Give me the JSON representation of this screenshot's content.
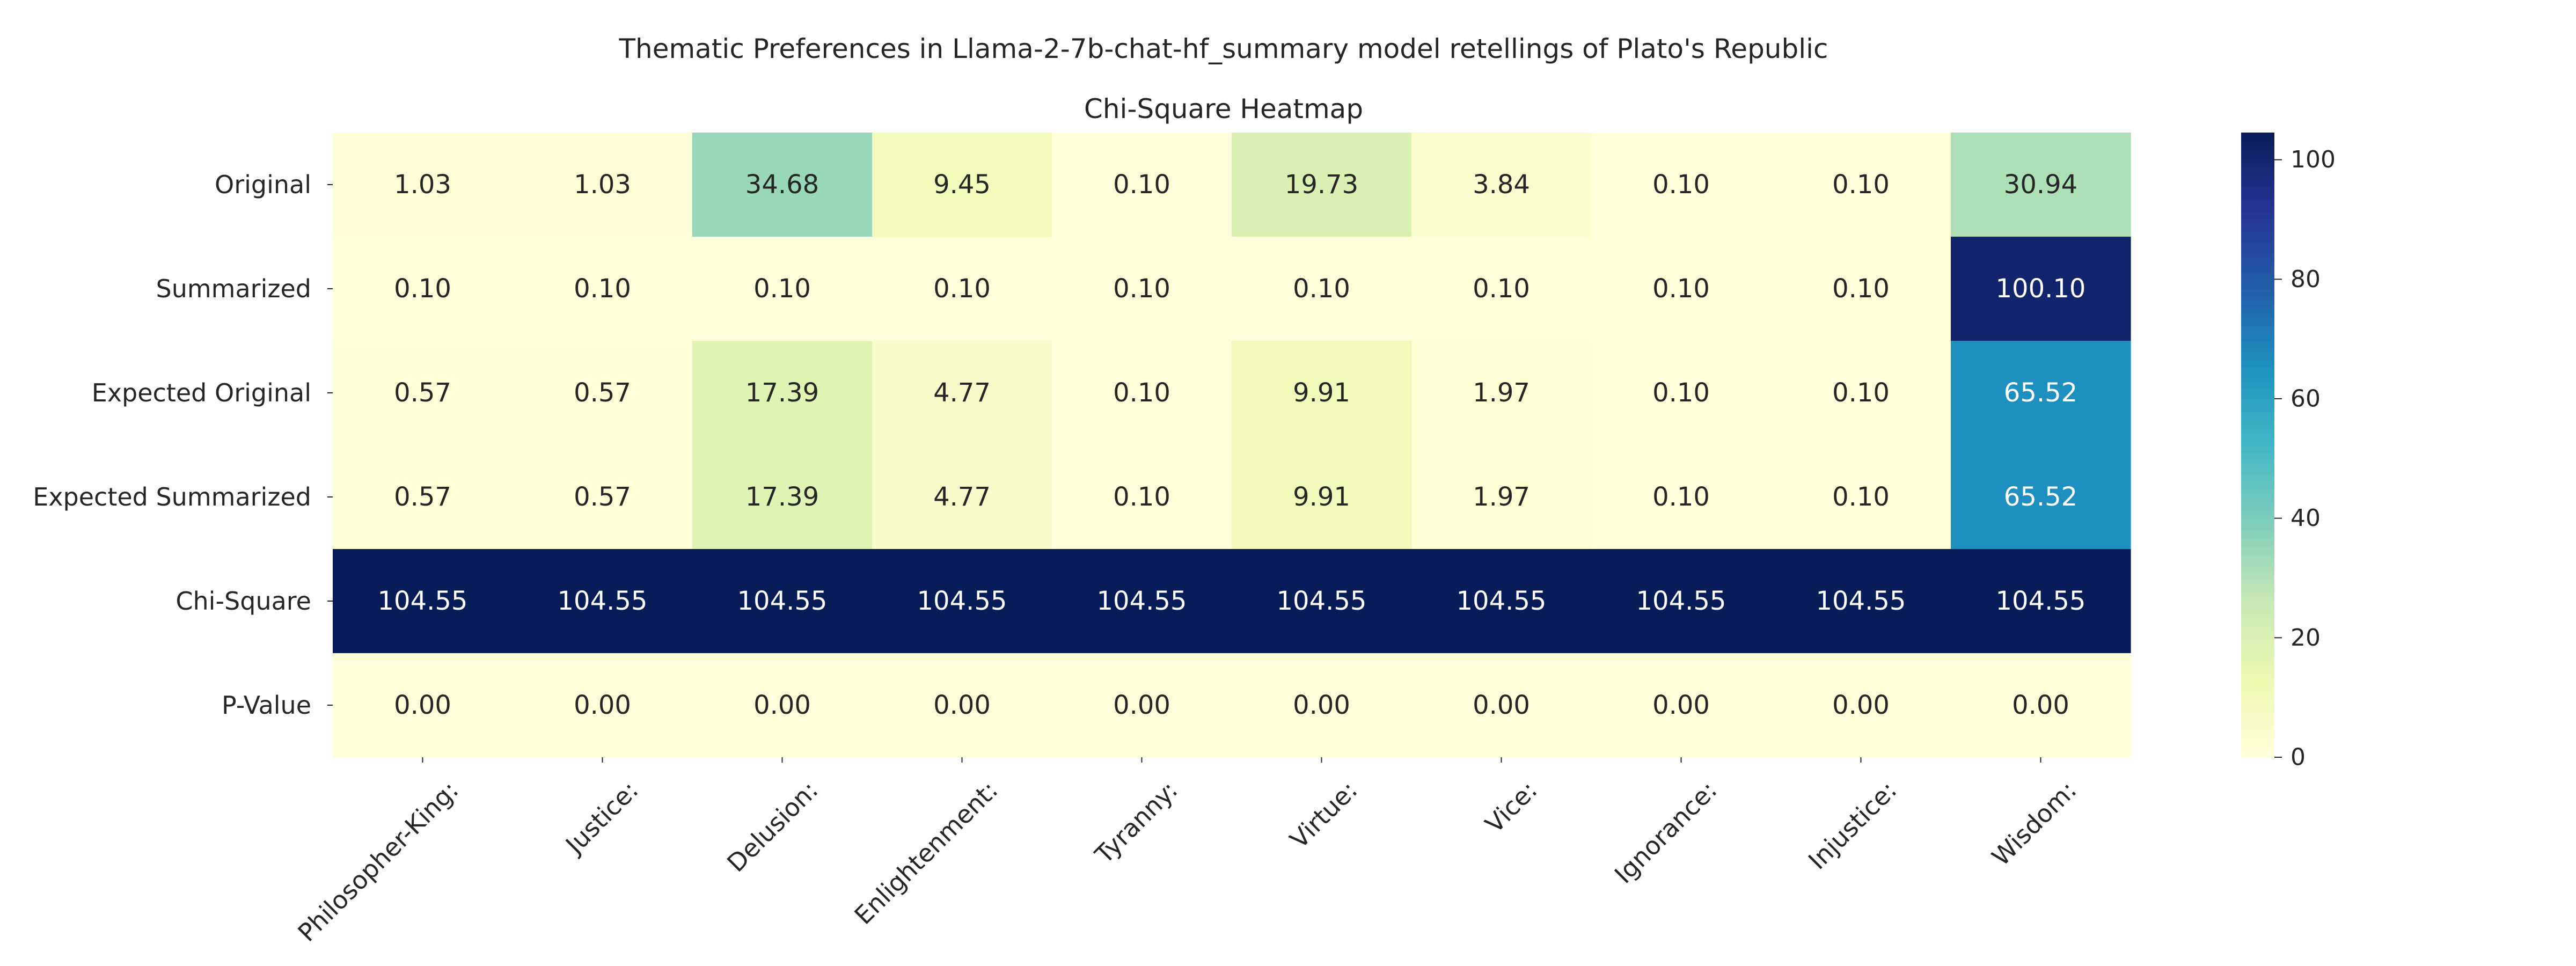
{
  "figure": {
    "title": "Thematic Preferences in Llama-2-7b-chat-hf_summary model retellings of Plato's Republic"
  },
  "chart_data": {
    "type": "heatmap",
    "title": "Chi-Square Heatmap",
    "colormap": "YlGnBu",
    "rows": [
      "Original",
      "Summarized",
      "Expected Original",
      "Expected Summarized",
      "Chi-Square",
      "P-Value"
    ],
    "columns": [
      "Philosopher-King:",
      "Justice:",
      "Delusion:",
      "Enlightenment:",
      "Tyranny:",
      "Virtue:",
      "Vice:",
      "Ignorance:",
      "Injustice:",
      "Wisdom:"
    ],
    "values": [
      [
        1.03,
        1.03,
        34.68,
        9.45,
        0.1,
        19.73,
        3.84,
        0.1,
        0.1,
        30.94
      ],
      [
        0.1,
        0.1,
        0.1,
        0.1,
        0.1,
        0.1,
        0.1,
        0.1,
        0.1,
        100.1
      ],
      [
        0.57,
        0.57,
        17.39,
        4.77,
        0.1,
        9.91,
        1.97,
        0.1,
        0.1,
        65.52
      ],
      [
        0.57,
        0.57,
        17.39,
        4.77,
        0.1,
        9.91,
        1.97,
        0.1,
        0.1,
        65.52
      ],
      [
        104.55,
        104.55,
        104.55,
        104.55,
        104.55,
        104.55,
        104.55,
        104.55,
        104.55,
        104.55
      ],
      [
        0.0,
        0.0,
        0.0,
        0.0,
        0.0,
        0.0,
        0.0,
        0.0,
        0.0,
        0.0
      ]
    ],
    "value_format": "2 decimals",
    "colorbar": {
      "range": [
        0,
        104.55
      ],
      "ticks": [
        0,
        20,
        40,
        60,
        80,
        100
      ]
    }
  }
}
